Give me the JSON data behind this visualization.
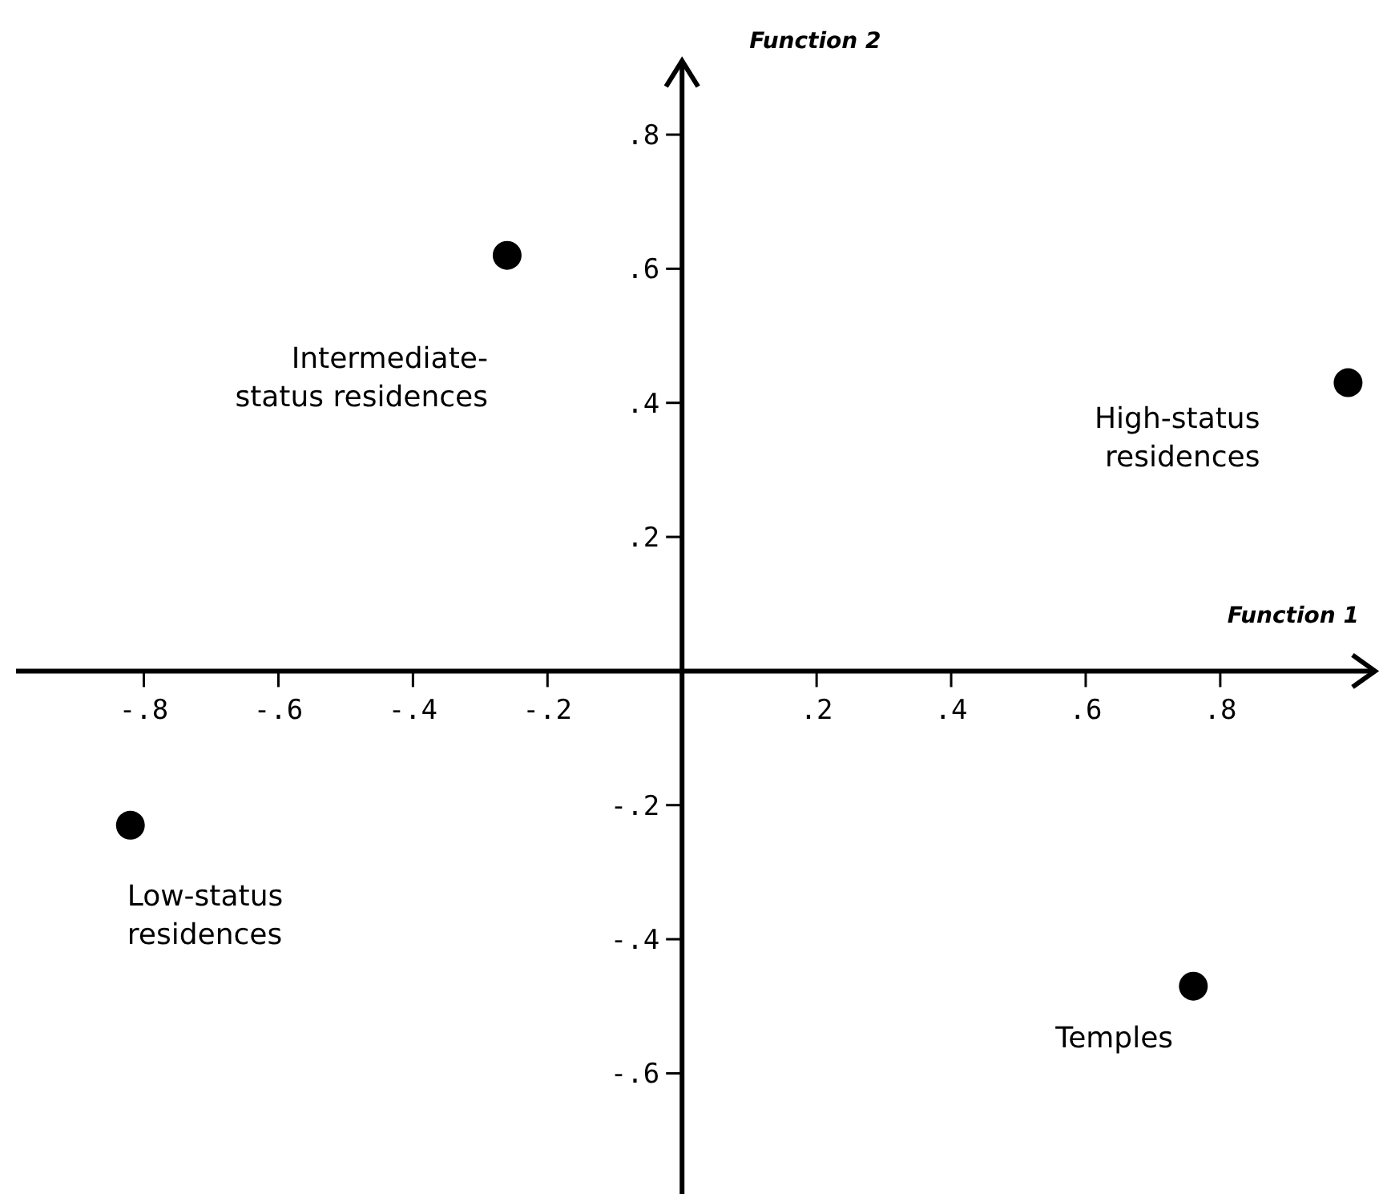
{
  "chart_data": {
    "type": "scatter",
    "xlabel": "Function 1",
    "ylabel": "Function 2",
    "x": [
      -0.82,
      -0.26,
      0.99,
      0.76
    ],
    "series": [
      {
        "color": "#000000",
        "values": [
          -0.23,
          0.62,
          0.43,
          -0.47
        ]
      }
    ],
    "xlim": [
      -0.99,
      1.03
    ],
    "ylim": [
      -0.78,
      0.91
    ],
    "xticks": [
      {
        "value": -0.8,
        "label": "-.8"
      },
      {
        "value": -0.6,
        "label": "-.6"
      },
      {
        "value": -0.4,
        "label": "-.4"
      },
      {
        "value": -0.2,
        "label": "-.2"
      },
      {
        "value": 0.2,
        "label": ".2"
      },
      {
        "value": 0.4,
        "label": ".4"
      },
      {
        "value": 0.6,
        "label": ".6"
      },
      {
        "value": 0.8,
        "label": ".8"
      }
    ],
    "yticks": [
      {
        "value": -0.6,
        "label": "-.6"
      },
      {
        "value": -0.4,
        "label": "-.4"
      },
      {
        "value": -0.2,
        "label": "-.2"
      },
      {
        "value": 0.2,
        "label": ".2"
      },
      {
        "value": 0.4,
        "label": ".4"
      },
      {
        "value": 0.6,
        "label": ".6"
      },
      {
        "value": 0.8,
        "label": ".8"
      }
    ],
    "marker": "circle",
    "grid": false,
    "annotations": [
      "Low-status residences",
      "Intermediate-status residences",
      "High-status residences",
      "Temples"
    ]
  }
}
